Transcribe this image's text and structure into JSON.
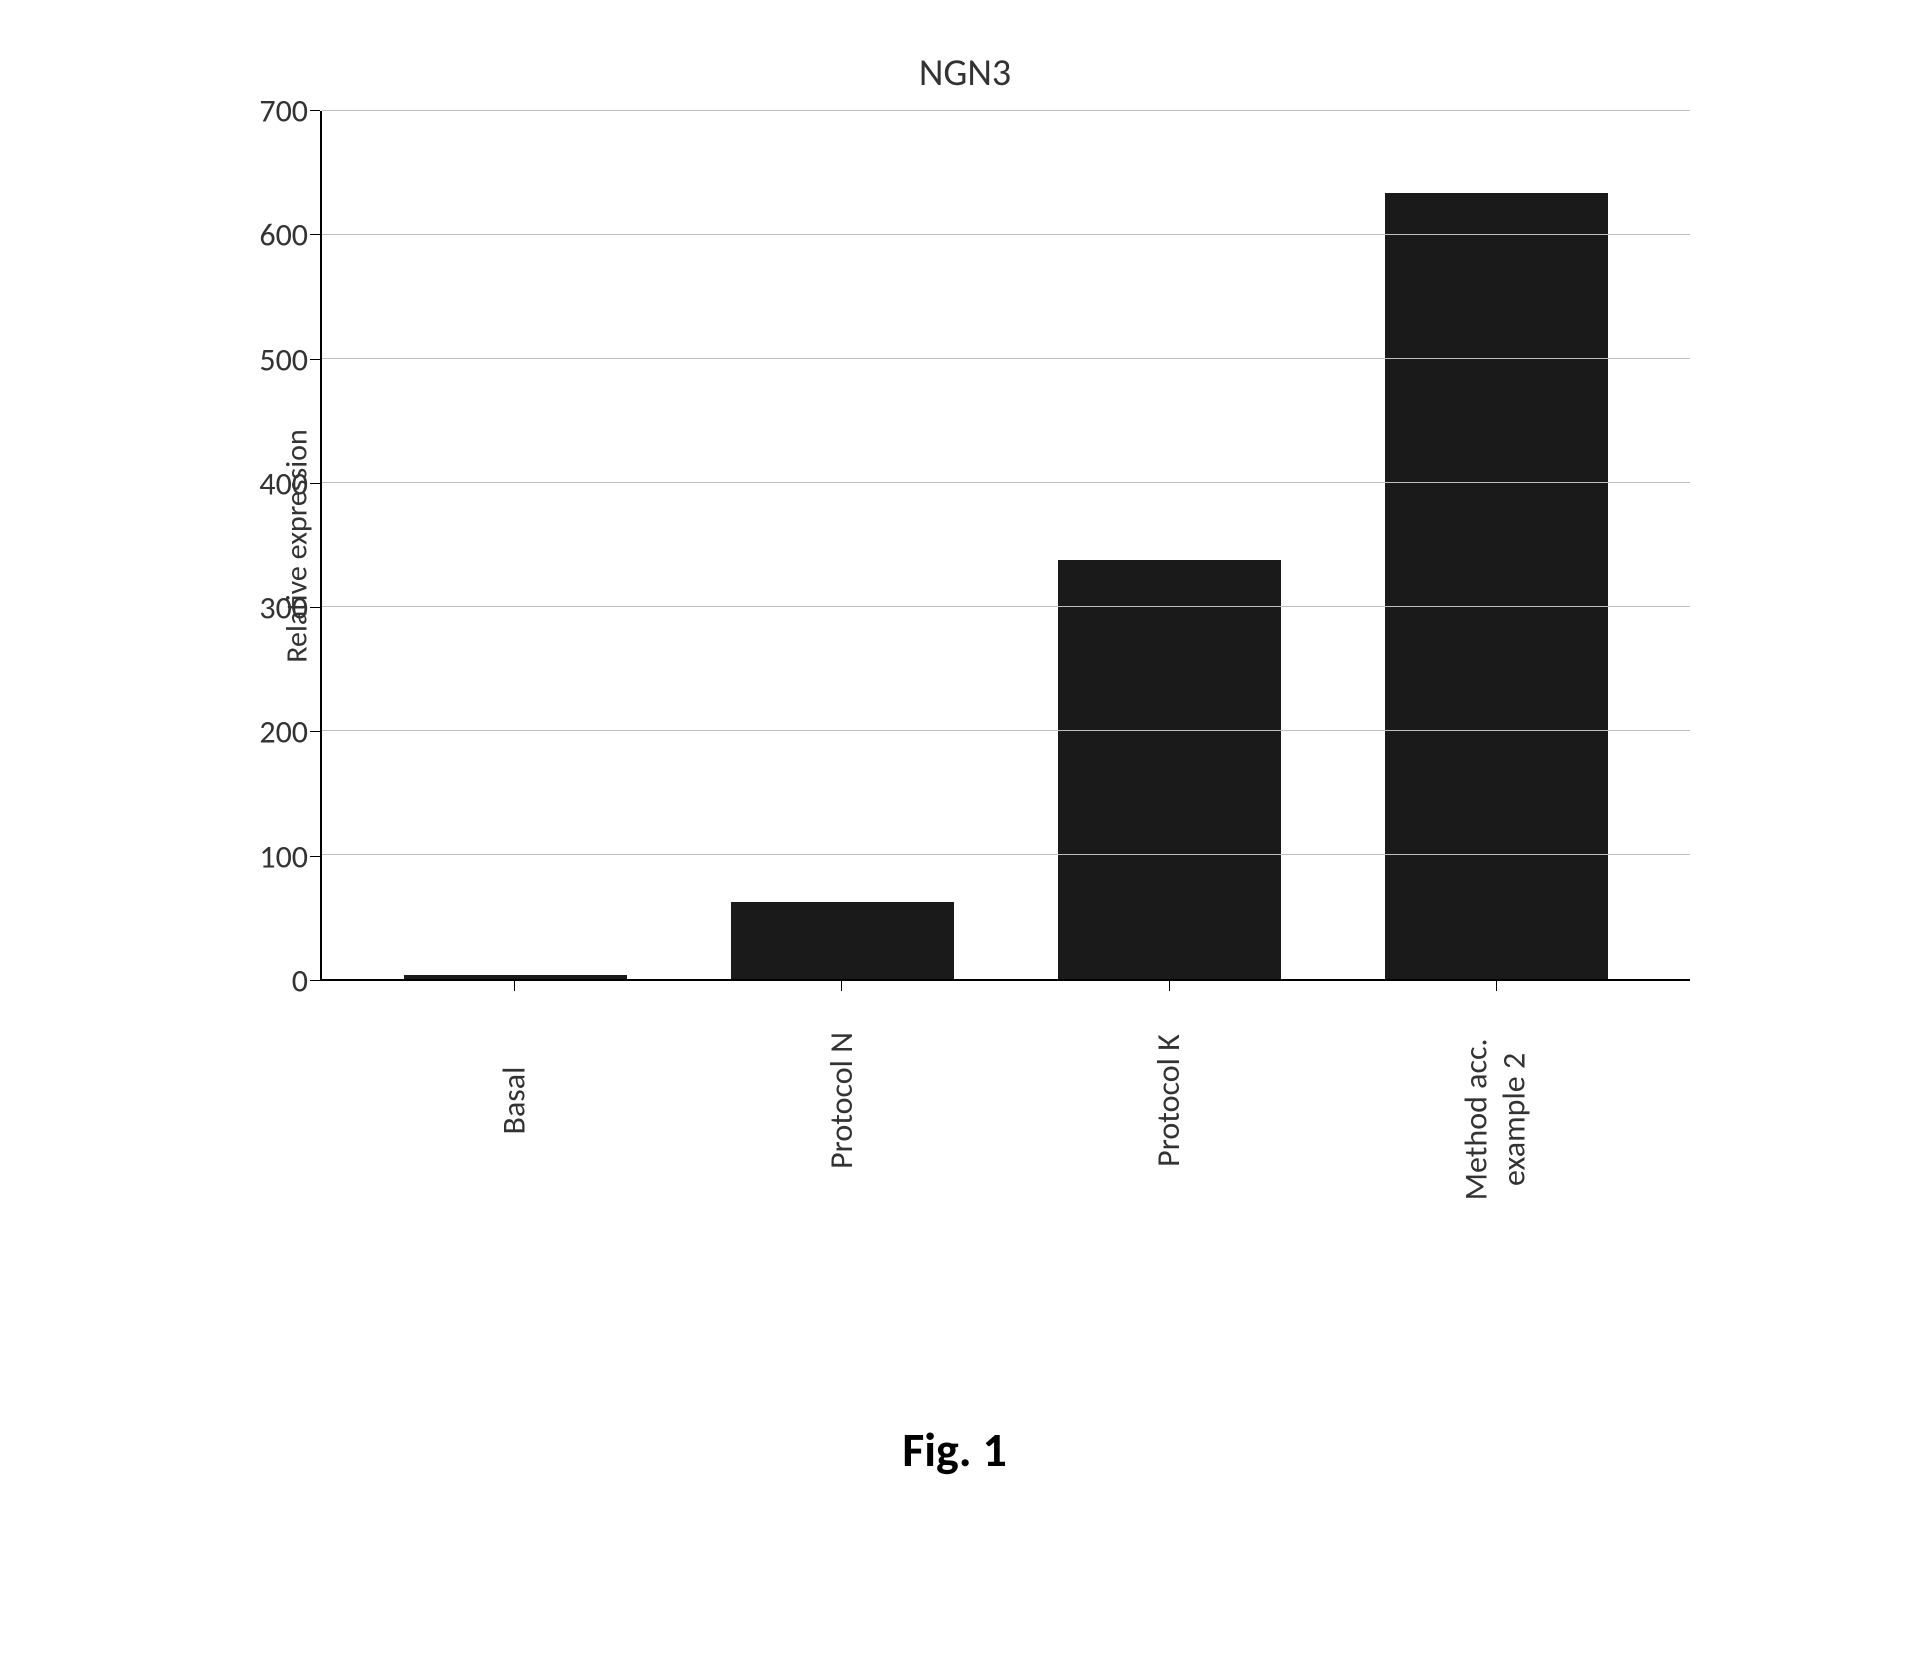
{
  "chart": {
    "type": "bar",
    "title": "NGN3",
    "title_fontsize": 38,
    "ylabel": "Relative expression",
    "ylabel_fontsize": 30,
    "ylim": [
      0,
      700
    ],
    "ytick_step": 100,
    "yticks": [
      0,
      100,
      200,
      300,
      400,
      500,
      600,
      700
    ],
    "ytick_fontsize": 32,
    "xtick_fontsize": 32,
    "categories": [
      "Basal",
      "Protocol N",
      "Protocol K",
      "Method acc.\nexample 2"
    ],
    "values": [
      3,
      62,
      338,
      634
    ],
    "bar_color": "#1a1a1a",
    "bar_width": 0.68,
    "background_color": "#ffffff",
    "grid_color": "#bfbfbf",
    "axis_color": "#000000",
    "text_color": "#333333"
  },
  "caption": {
    "text": "Fig. 1",
    "fontsize": 48
  }
}
